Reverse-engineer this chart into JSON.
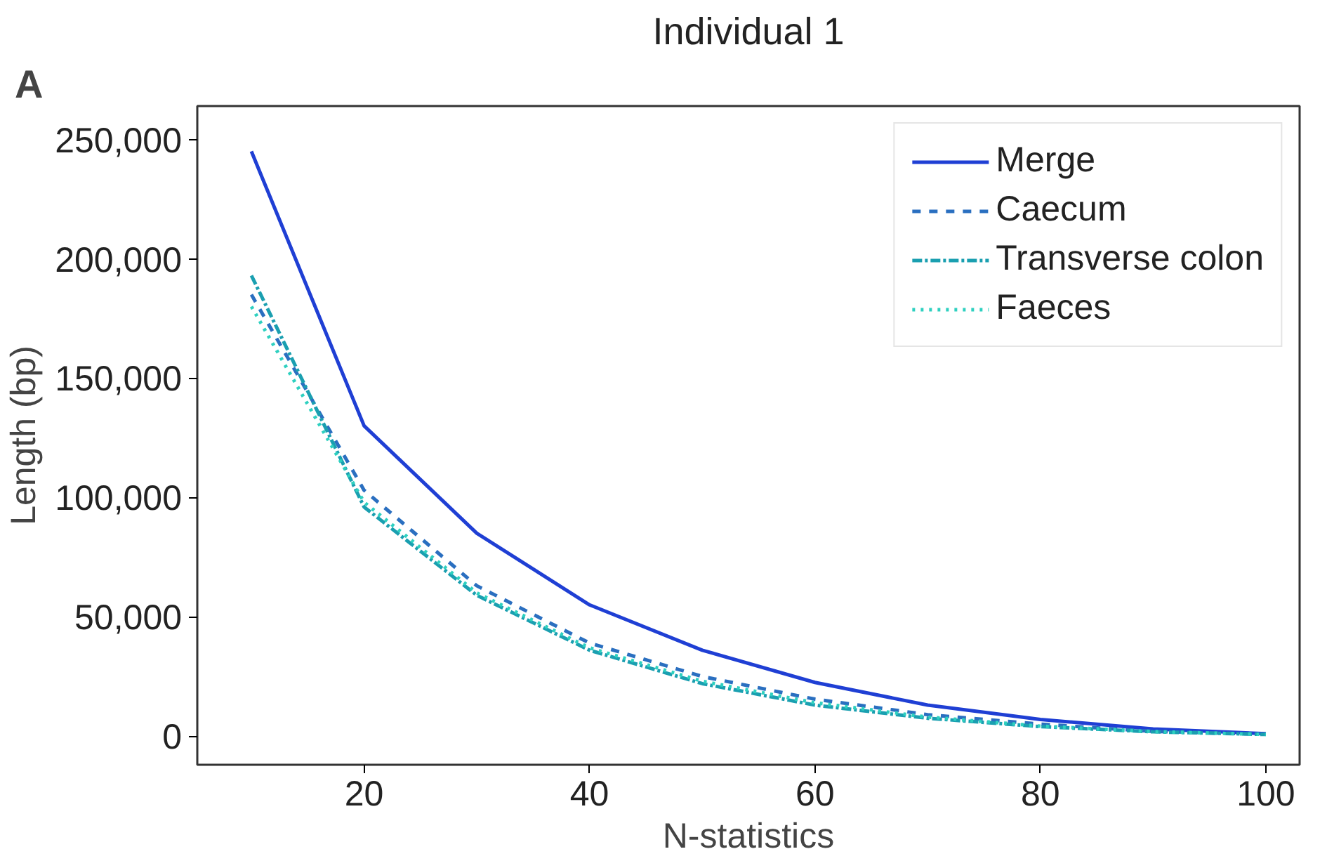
{
  "chart_data": {
    "type": "line",
    "title": "Individual 1",
    "xlabel": "N-statistics",
    "ylabel": "Length (bp)",
    "annotations": [
      "A"
    ],
    "x": [
      10,
      20,
      30,
      40,
      50,
      60,
      70,
      80,
      90,
      100
    ],
    "series": [
      {
        "name": "Merge",
        "color": "#1f3fd4",
        "line_style": "solid",
        "values": [
          245000,
          130000,
          85000,
          55000,
          36000,
          22500,
          13000,
          7000,
          3000,
          1000
        ]
      },
      {
        "name": "Caecum",
        "color": "#2a6fc0",
        "line_style": "dashed",
        "values": [
          185000,
          103000,
          63000,
          39000,
          25000,
          15500,
          9000,
          5000,
          2000,
          800
        ]
      },
      {
        "name": "Transverse colon",
        "color": "#1a9fb0",
        "line_style": "dashdot",
        "values": [
          193000,
          96000,
          59000,
          36000,
          22000,
          13000,
          7500,
          4000,
          1800,
          700
        ]
      },
      {
        "name": "Faeces",
        "color": "#2ed0c0",
        "line_style": "dotted",
        "values": [
          180000,
          98000,
          60000,
          37000,
          23000,
          14000,
          8000,
          4200,
          1900,
          700
        ]
      }
    ],
    "xlim": [
      5.2,
      103
    ],
    "ylim": [
      -12000,
      264000
    ],
    "xticks": [
      20,
      40,
      60,
      80,
      100
    ],
    "yticks": [
      {
        "value": 0,
        "label": "0"
      },
      {
        "value": 50000,
        "label": "50,000"
      },
      {
        "value": 100000,
        "label": "100,000"
      },
      {
        "value": 150000,
        "label": "150,000"
      },
      {
        "value": 200000,
        "label": "200,000"
      },
      {
        "value": 250000,
        "label": "250,000"
      }
    ],
    "grid": false,
    "legend": "top right",
    "marker": "none"
  }
}
